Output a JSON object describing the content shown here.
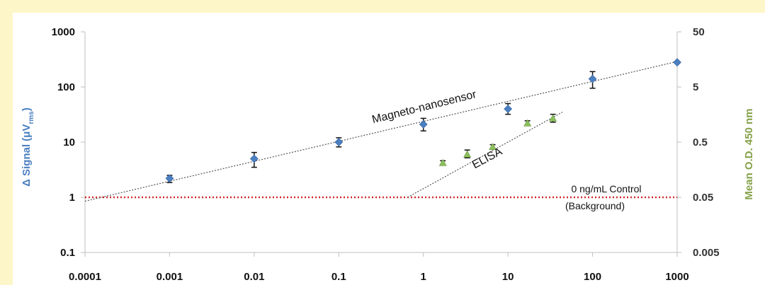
{
  "chart_data": {
    "type": "scatter",
    "x_scale": "log",
    "y_scale": "log",
    "y2_scale": "log",
    "xlim": [
      0.0001,
      1000
    ],
    "ylim": [
      0.1,
      1000
    ],
    "y2lim": [
      0.005,
      50
    ],
    "ylabel_main": "Δ Signal (μV",
    "ylabel_sub": "rms",
    "ylabel_close": ")",
    "y2label": "Mean O.D. 450 nm",
    "x_ticks": [
      "0.0001",
      "0.001",
      "0.01",
      "0.1",
      "1",
      "10",
      "100",
      "1000"
    ],
    "y_ticks": [
      "0.1",
      "1",
      "10",
      "100",
      "1000"
    ],
    "y2_ticks": [
      "0.005",
      "0.05",
      "0.5",
      "5",
      "50"
    ],
    "grid": false,
    "colors": {
      "magneto": "#4a7fc1",
      "elisa": "#8bbf5b",
      "control_line": "#d12b2b",
      "left_axis_label": "#4a7fc1",
      "right_axis_label": "#86a24a",
      "background": "#fdf6c8"
    },
    "series": [
      {
        "name": "Magneto-nanosensor",
        "marker": "diamond",
        "axis": "left",
        "points": [
          {
            "x": 0.001,
            "y": 2.2,
            "err_lo": 1.85,
            "err_hi": 2.5
          },
          {
            "x": 0.01,
            "y": 5.0,
            "err_lo": 3.5,
            "err_hi": 6.5
          },
          {
            "x": 0.1,
            "y": 10,
            "err_lo": 8.2,
            "err_hi": 12
          },
          {
            "x": 1,
            "y": 21,
            "err_lo": 16,
            "err_hi": 27
          },
          {
            "x": 10,
            "y": 40,
            "err_lo": 32,
            "err_hi": 50
          },
          {
            "x": 100,
            "y": 140,
            "err_lo": 95,
            "err_hi": 190
          },
          {
            "x": 1000,
            "y": 280
          }
        ],
        "trendline": {
          "x": [
            0.0001,
            1000
          ],
          "y": [
            0.85,
            290
          ]
        }
      },
      {
        "name": "ELISA",
        "marker": "triangle",
        "axis": "right",
        "points": [
          {
            "x": 1.7,
            "y": 0.21,
            "err_lo": 0.19,
            "err_hi": 0.23
          },
          {
            "x": 3.3,
            "y": 0.3,
            "err_lo": 0.26,
            "err_hi": 0.36
          },
          {
            "x": 6.6,
            "y": 0.41,
            "err_lo": 0.37,
            "err_hi": 0.45
          },
          {
            "x": 17,
            "y": 1.1,
            "err_lo": 1.0,
            "err_hi": 1.22
          },
          {
            "x": 34,
            "y": 1.35,
            "err_lo": 1.15,
            "err_hi": 1.6
          }
        ],
        "trendline": {
          "x": [
            0.65,
            44
          ],
          "y": [
            0.05,
            1.75
          ]
        }
      }
    ],
    "control": {
      "y": 1,
      "label1": "0 ng/mL Control",
      "label2": "(Background)"
    },
    "annotations": {
      "magneto": "Magneto-nanosensor",
      "elisa": "ELISA"
    }
  }
}
